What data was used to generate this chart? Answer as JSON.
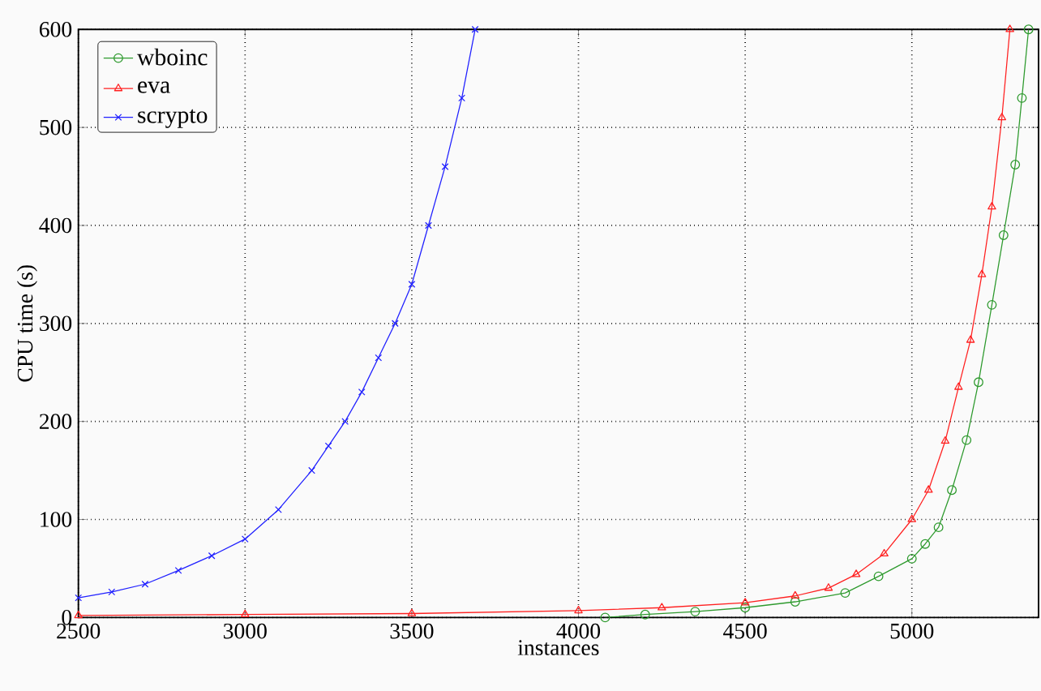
{
  "chart_data": {
    "type": "line",
    "xlabel": "instances",
    "ylabel": "CPU time (s)",
    "xlim": [
      2500,
      5380
    ],
    "ylim": [
      0,
      600
    ],
    "xticks": [
      2500,
      3000,
      3500,
      4000,
      4500,
      5000
    ],
    "yticks": [
      0,
      100,
      200,
      300,
      400,
      500,
      600
    ],
    "grid": true,
    "legend": "top left",
    "line_style": "solid",
    "series": [
      {
        "name": "wboinc",
        "color": "#2e9a2e",
        "marker": "circle",
        "x": [
          4080,
          4200,
          4350,
          4500,
          4650,
          4800,
          4900,
          5000,
          5040,
          5080,
          5120,
          5164,
          5200,
          5240,
          5275,
          5310,
          5330,
          5350
        ],
        "values": [
          0,
          3,
          6,
          10,
          16,
          25,
          42,
          60,
          75,
          92,
          130,
          181,
          240,
          319,
          390,
          462,
          530,
          600
        ]
      },
      {
        "name": "eva",
        "color": "#ff2020",
        "marker": "triangle",
        "x": [
          2500,
          3000,
          3500,
          4000,
          4250,
          4500,
          4650,
          4750,
          4833,
          4917,
          5000,
          5050,
          5100,
          5140,
          5176,
          5210,
          5240,
          5270,
          5294
        ],
        "values": [
          2,
          3,
          4,
          7,
          10,
          15,
          22,
          30,
          44,
          65,
          100,
          130,
          180,
          235,
          283,
          350,
          419,
          510,
          600
        ]
      },
      {
        "name": "scrypto",
        "color": "#2020ff",
        "marker": "cross",
        "x": [
          2500,
          2600,
          2700,
          2800,
          2900,
          3000,
          3100,
          3200,
          3250,
          3300,
          3350,
          3400,
          3450,
          3500,
          3550,
          3600,
          3650,
          3690
        ],
        "values": [
          20,
          26,
          34,
          48,
          63,
          80,
          110,
          150,
          175,
          200,
          230,
          265,
          300,
          340,
          400,
          460,
          530,
          600
        ]
      }
    ]
  }
}
